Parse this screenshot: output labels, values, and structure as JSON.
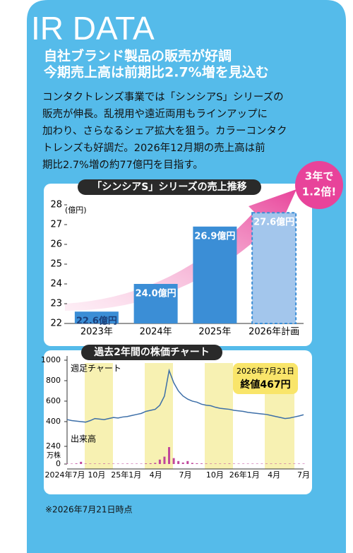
{
  "header": {
    "title": "IR DATA",
    "headline": [
      "自社ブランド製品の販売が好調",
      "今期売上高は前期比2.7%増を見込む"
    ],
    "body": [
      "コンタクトレンズ事業では「シンシアS」シリーズの",
      "販売が伸長。乱視用や遠近両用もラインアップに",
      "加わり、さらなるシェア拡大を狙う。カラーコンタク",
      "トレンズも好調だ。2026年12月期の売上高は前",
      "期比2.7%増の約77億円を目指す。"
    ]
  },
  "chart_data": [
    {
      "type": "bar",
      "title": "「シンシアS」シリーズの売上推移",
      "y_unit": "(億円)",
      "categories": [
        "2023年",
        "2024年",
        "2025年",
        "2026年計画"
      ],
      "values": [
        22.6,
        24.0,
        26.9,
        27.6
      ],
      "value_labels": [
        "22.6億円",
        "24.0億円",
        "26.9億円",
        "27.6億円"
      ],
      "colors": [
        "#3b8ed6",
        "#3b8ed6",
        "#3b8ed6",
        "#a3c6ec"
      ],
      "ylim": [
        22,
        28
      ],
      "yticks": [
        22,
        23,
        24,
        25,
        26,
        27,
        28
      ],
      "annotation": [
        "3年で",
        "1.2倍!"
      ]
    },
    {
      "type": "line",
      "title": "過去2年間の株価チャート",
      "x_labels": [
        "2024年7月",
        "10月",
        "25年1月",
        "4月",
        "7月",
        "10月",
        "26年1月",
        "4月",
        "7月"
      ],
      "series": [
        {
          "name": "週足チャート",
          "color": "#3d6fa8",
          "values": [
            420,
            410,
            405,
            400,
            395,
            410,
            430,
            425,
            420,
            430,
            440,
            435,
            445,
            450,
            460,
            470,
            480,
            500,
            510,
            520,
            560,
            650,
            900,
            780,
            700,
            650,
            620,
            600,
            590,
            570,
            560,
            555,
            540,
            530,
            525,
            520,
            510,
            505,
            500,
            490,
            485,
            480,
            475,
            470,
            460,
            450,
            440,
            430,
            435,
            445,
            455,
            467
          ]
        },
        {
          "name": "出来高",
          "color": "#c0479b",
          "axis": "y2",
          "values": [
            5,
            5,
            8,
            30,
            6,
            5,
            5,
            5,
            6,
            5,
            5,
            5,
            5,
            6,
            5,
            5,
            5,
            8,
            10,
            15,
            60,
            100,
            230,
            80,
            40,
            20,
            40,
            15,
            10,
            8,
            6,
            5,
            5,
            5,
            5,
            6,
            5,
            5,
            5,
            5,
            5,
            5,
            5,
            5,
            5,
            5,
            5,
            5,
            5,
            5,
            5,
            5
          ]
        }
      ],
      "ylim": [
        310,
        1000
      ],
      "yticks": [
        400,
        600,
        800,
        1000
      ],
      "y2lim": [
        0,
        240
      ],
      "y2ticks": [
        0,
        240
      ],
      "y2_unit": "万株",
      "annotation": [
        "2026年7月21日",
        "終値467円"
      ]
    }
  ],
  "footnote": "※2026年7月21日時点"
}
